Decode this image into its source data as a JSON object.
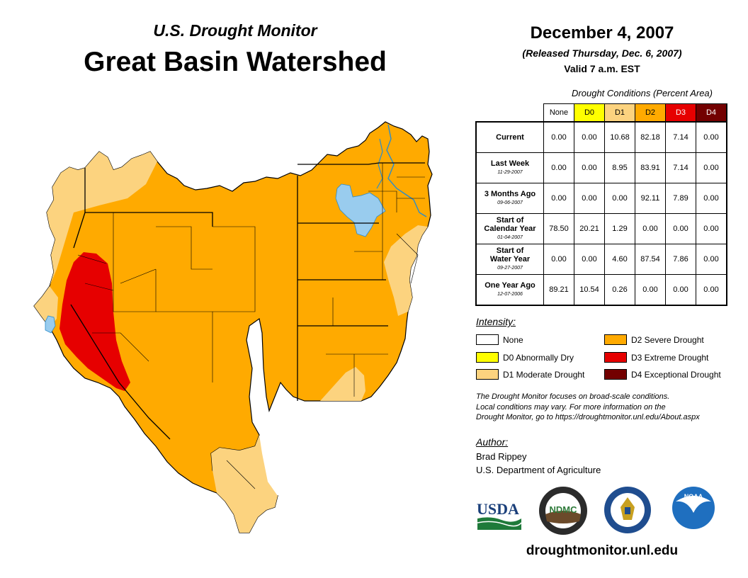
{
  "header": {
    "subtitle": "U.S. Drought Monitor",
    "title": "Great Basin Watershed",
    "date": "December 4, 2007",
    "released": "(Released Thursday, Dec. 6, 2007)",
    "valid": "Valid 7 a.m. EST"
  },
  "table": {
    "caption": "Drought Conditions (Percent Area)",
    "columns": [
      "None",
      "D0",
      "D1",
      "D2",
      "D3",
      "D4"
    ],
    "rows": [
      {
        "label": "Current",
        "label2": "",
        "date": "",
        "values": [
          "0.00",
          "0.00",
          "10.68",
          "82.18",
          "7.14",
          "0.00"
        ]
      },
      {
        "label": "Last Week",
        "label2": "",
        "date": "11-29-2007",
        "values": [
          "0.00",
          "0.00",
          "8.95",
          "83.91",
          "7.14",
          "0.00"
        ]
      },
      {
        "label": "3 Months Ago",
        "label2": "",
        "date": "09-06-2007",
        "values": [
          "0.00",
          "0.00",
          "0.00",
          "92.11",
          "7.89",
          "0.00"
        ]
      },
      {
        "label": "Start of",
        "label2": "Calendar Year",
        "date": "01-04-2007",
        "values": [
          "78.50",
          "20.21",
          "1.29",
          "0.00",
          "0.00",
          "0.00"
        ]
      },
      {
        "label": "Start of",
        "label2": "Water Year",
        "date": "09-27-2007",
        "values": [
          "0.00",
          "0.00",
          "4.60",
          "87.54",
          "7.86",
          "0.00"
        ]
      },
      {
        "label": "One Year Ago",
        "label2": "",
        "date": "12-07-2006",
        "values": [
          "89.21",
          "10.54",
          "0.26",
          "0.00",
          "0.00",
          "0.00"
        ]
      }
    ]
  },
  "legend": {
    "title": "Intensity:",
    "items": [
      {
        "label": "None",
        "color": "#ffffff"
      },
      {
        "label": "D0 Abnormally Dry",
        "color": "#ffff00"
      },
      {
        "label": "D1 Moderate Drought",
        "color": "#fcd37f"
      },
      {
        "label": "D2 Severe Drought",
        "color": "#ffaa00"
      },
      {
        "label": "D3 Extreme Drought",
        "color": "#e60000"
      },
      {
        "label": "D4 Exceptional Drought",
        "color": "#730000"
      }
    ]
  },
  "note": {
    "line1": "The Drought Monitor focuses on broad-scale conditions.",
    "line2": "Local conditions may vary. For more information on the",
    "line3": "Drought Monitor, go to https://droughtmonitor.unl.edu/About.aspx"
  },
  "author": {
    "title": "Author:",
    "name": "Brad Rippey",
    "org": "U.S. Department of Agriculture"
  },
  "logos": {
    "usda": "USDA",
    "ndmc": "NDMC",
    "noaa": "NOAA"
  },
  "footer": {
    "url": "droughtmonitor.unl.edu"
  },
  "colors": {
    "none": "#ffffff",
    "d0": "#ffff00",
    "d1": "#fcd37f",
    "d2": "#ffaa00",
    "d3": "#e60000",
    "d4": "#730000",
    "water": "#99ccee",
    "river": "#2a8ccc"
  }
}
